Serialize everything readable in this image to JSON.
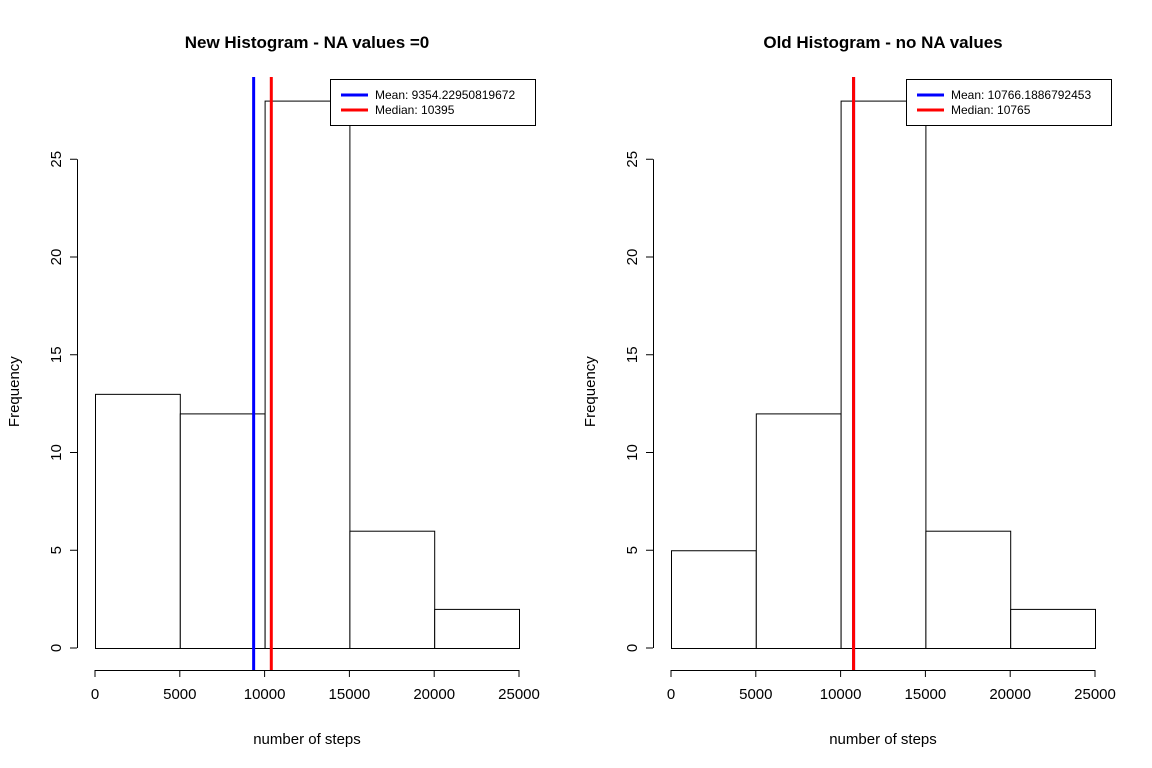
{
  "chart_data": [
    {
      "type": "bar",
      "title": "New Histogram - NA values =0",
      "xlabel": "number of steps",
      "ylabel": "Frequency",
      "bins": [
        [
          0,
          5000
        ],
        [
          5000,
          10000
        ],
        [
          10000,
          15000
        ],
        [
          15000,
          20000
        ],
        [
          20000,
          25000
        ]
      ],
      "values": [
        13,
        12,
        28,
        6,
        2
      ],
      "xticks": [
        "0",
        "5000",
        "10000",
        "15000",
        "20000",
        "25000"
      ],
      "yticks": [
        "0",
        "5",
        "10",
        "15",
        "20",
        "25"
      ],
      "xlim": [
        0,
        25000
      ],
      "ylim": [
        0,
        28
      ],
      "grid": false,
      "legend_position": "top-right",
      "vlines": [
        {
          "label": "Mean:  9354.22950819672",
          "x": 9354.22950819672,
          "color": "#0000ff"
        },
        {
          "label": "Median:  10395",
          "x": 10395,
          "color": "#ff0000"
        }
      ]
    },
    {
      "type": "bar",
      "title": "Old Histogram - no NA values",
      "xlabel": "number of steps",
      "ylabel": "Frequency",
      "bins": [
        [
          0,
          5000
        ],
        [
          5000,
          10000
        ],
        [
          10000,
          15000
        ],
        [
          15000,
          20000
        ],
        [
          20000,
          25000
        ]
      ],
      "values": [
        5,
        12,
        28,
        6,
        2
      ],
      "xticks": [
        "0",
        "5000",
        "10000",
        "15000",
        "20000",
        "25000"
      ],
      "yticks": [
        "0",
        "5",
        "10",
        "15",
        "20",
        "25"
      ],
      "xlim": [
        0,
        25000
      ],
      "ylim": [
        0,
        28
      ],
      "grid": false,
      "legend_position": "top-right",
      "vlines": [
        {
          "label": "Mean:  10766.1886792453",
          "x": 10766.1886792453,
          "color": "#0000ff"
        },
        {
          "label": "Median:  10765",
          "x": 10765,
          "color": "#ff0000"
        }
      ]
    }
  ]
}
